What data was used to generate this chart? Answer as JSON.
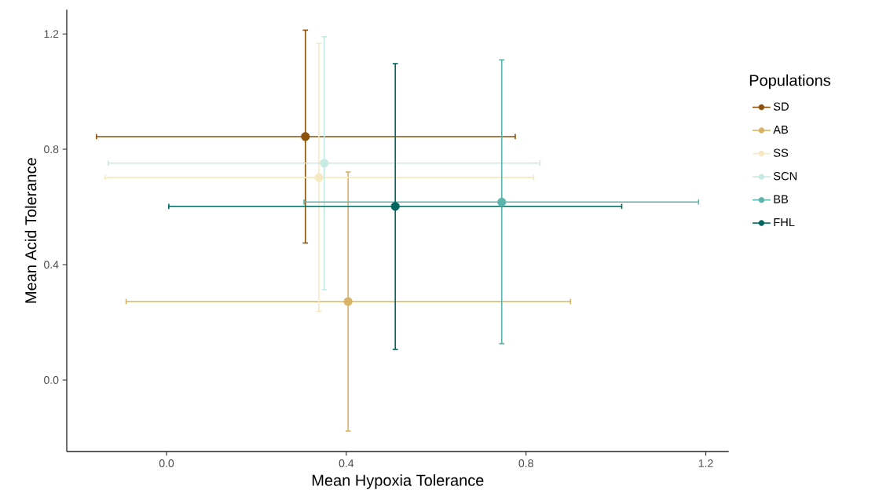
{
  "chart_data": {
    "type": "scatter",
    "xlabel": "Mean Hypoxia Tolerance",
    "ylabel": "Mean Acid Tolerance",
    "legend_title": "Populations",
    "legend": "right",
    "marker": "circle",
    "xlim": [
      -0.222,
      1.251
    ],
    "ylim": [
      -0.248,
      1.284
    ],
    "xticks": [
      {
        "value": 0,
        "label": "0.0"
      },
      {
        "value": 0.4,
        "label": "0.4"
      },
      {
        "value": 0.8,
        "label": "0.8"
      },
      {
        "value": 1.2,
        "label": "1.2"
      }
    ],
    "yticks": [
      {
        "value": 0,
        "label": "0.0"
      },
      {
        "value": 0.4,
        "label": "0.4"
      },
      {
        "value": 0.8,
        "label": "0.8"
      },
      {
        "value": 1.2,
        "label": "1.2"
      }
    ],
    "series": [
      {
        "name": "SD",
        "color": "#8c510a",
        "x": [
          0.309
        ],
        "values": [
          0.844
        ],
        "errors": [
          [
            0.475,
            1.213
          ]
        ],
        "xerrors": [
          [
            -0.156,
            0.776
          ]
        ]
      },
      {
        "name": "AB",
        "color": "#d8b365",
        "x": [
          0.404
        ],
        "values": [
          0.272
        ],
        "errors": [
          [
            -0.177,
            0.721
          ]
        ],
        "xerrors": [
          [
            -0.09,
            0.899
          ]
        ]
      },
      {
        "name": "SS",
        "color": "#f6e8c3",
        "x": [
          0.339
        ],
        "values": [
          0.702
        ],
        "errors": [
          [
            0.238,
            1.167
          ]
        ],
        "xerrors": [
          [
            -0.137,
            0.817
          ]
        ]
      },
      {
        "name": "SCN",
        "color": "#c7eae5",
        "x": [
          0.351
        ],
        "values": [
          0.752
        ],
        "errors": [
          [
            0.313,
            1.19
          ]
        ],
        "xerrors": [
          [
            -0.13,
            0.831
          ]
        ]
      },
      {
        "name": "BB",
        "color": "#5ab4ac",
        "x": [
          0.746
        ],
        "values": [
          0.617
        ],
        "errors": [
          [
            0.126,
            1.11
          ]
        ],
        "xerrors": [
          [
            0.306,
            1.184
          ]
        ]
      },
      {
        "name": "FHL",
        "color": "#01665e",
        "x": [
          0.509
        ],
        "values": [
          0.602
        ],
        "errors": [
          [
            0.106,
            1.097
          ]
        ],
        "xerrors": [
          [
            0.005,
            1.013
          ]
        ]
      }
    ]
  }
}
